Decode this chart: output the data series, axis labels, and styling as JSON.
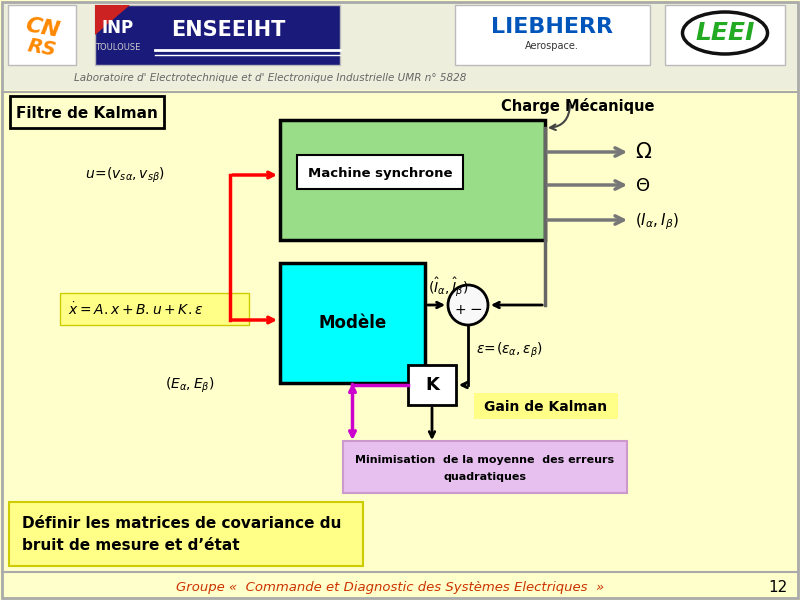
{
  "bg_color": "#FFFFCC",
  "header_bg": "#EEEEDD",
  "title": "Filtre de Kalman",
  "machine_box_color": "#99DD88",
  "modele_box_color": "#00FFFF",
  "k_box_color": "#FFFFFF",
  "mini_box_color": "#E8C0F0",
  "eq_box_color": "#FFFF88",
  "bot_box_color": "#FFFF88",
  "footer_text": "Groupe «  Commande et Diagnostic des Systèmes Electriques  »",
  "page_number": "12",
  "lab_text": "Laboratoire d' Electrotechnique et d' Electronique Industrielle UMR n° 5828",
  "bottom_text_line1": "Définir les matrices de covariance du",
  "bottom_text_line2": "bruit de mesure et d’état",
  "charge_text": "Charge Mécanique",
  "gain_text": "Gain de Kalman",
  "mini_text1": "Minimisation  de la moyenne  des erreurs",
  "mini_text2": "quadratiques"
}
